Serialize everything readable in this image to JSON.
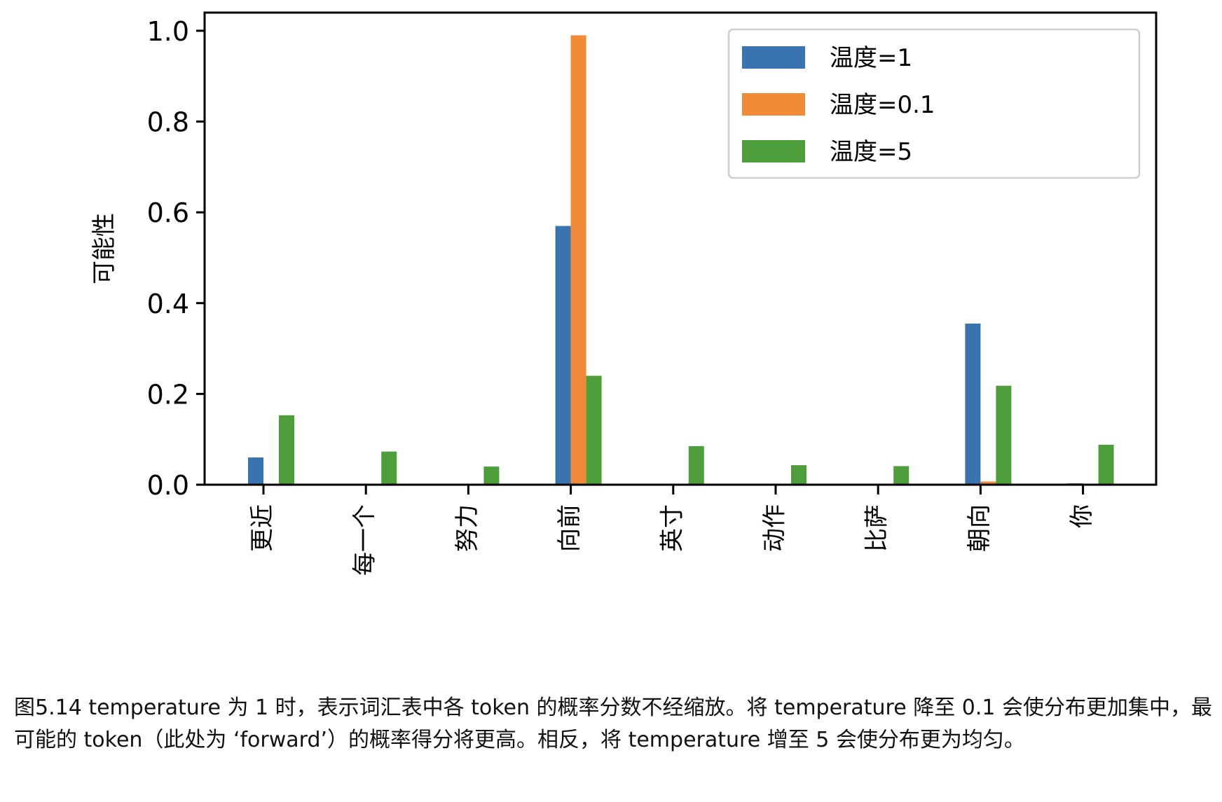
{
  "chart_data": {
    "type": "bar",
    "categories": [
      "更近",
      "每一个",
      "努力",
      "向前",
      "英寸",
      "动作",
      "比萨",
      "朝向",
      "你"
    ],
    "series": [
      {
        "name": "温度=1",
        "color": "#3a74b0",
        "values": [
          0.06,
          0.0,
          0.0,
          0.57,
          0.0,
          0.0,
          0.0,
          0.355,
          0.003
        ]
      },
      {
        "name": "温度=0.1",
        "color": "#f08a36",
        "values": [
          0.0,
          0.0,
          0.0,
          0.99,
          0.0,
          0.0,
          0.0,
          0.007,
          0.0
        ]
      },
      {
        "name": "温度=5",
        "color": "#4f9e3c",
        "values": [
          0.153,
          0.073,
          0.04,
          0.24,
          0.085,
          0.043,
          0.041,
          0.218,
          0.088
        ]
      }
    ],
    "xlabel": "",
    "ylabel": "可能性",
    "ylim": [
      0,
      1.04
    ],
    "yticks": [
      "0.0",
      "0.2",
      "0.4",
      "0.6",
      "0.8",
      "1.0"
    ],
    "grid": false,
    "legend_position": "top-right"
  },
  "caption": "图5.14 temperature 为 1 时，表示词汇表中各 token 的概率分数不经缩放。将 temperature 降至 0.1 会使分布更加集中，最可能的 token（此处为 ‘forward’）的概率得分将更高。相反，将 temperature 增至 5 会使分布更为均匀。"
}
